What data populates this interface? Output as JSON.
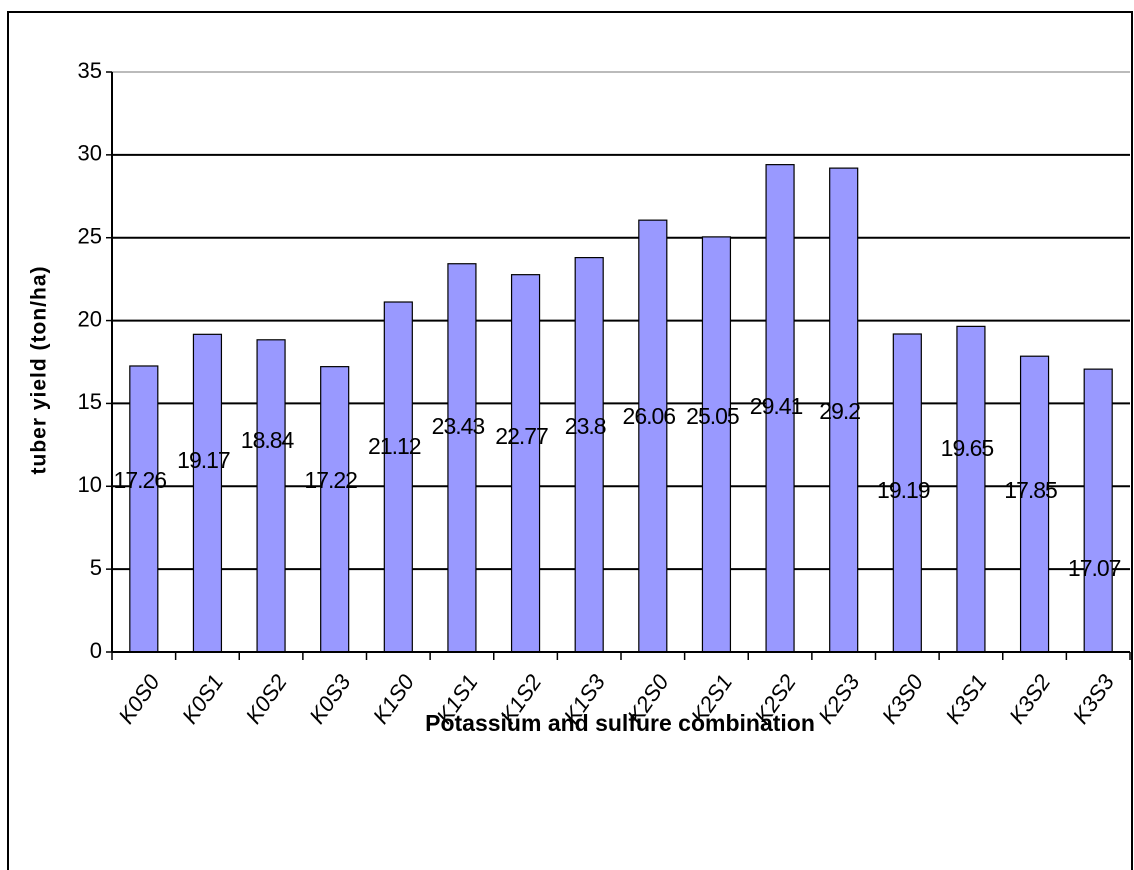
{
  "chart_data": {
    "type": "bar",
    "x_label": "Potassium and sulfure combination",
    "y_label": "tuber yield (ton/ha)",
    "categories": [
      "K0S0",
      "K0S1",
      "K0S2",
      "K0S3",
      "K1S0",
      "K1S1",
      "K1S2",
      "K1S3",
      "K2S0",
      "K2S1",
      "K2S2",
      "K2S3",
      "K3S0",
      "K3S1",
      "K3S2",
      "K3S3"
    ],
    "values": [
      17.26,
      19.17,
      18.84,
      17.22,
      21.12,
      23.43,
      22.77,
      23.8,
      26.06,
      25.05,
      29.41,
      29.2,
      19.19,
      19.65,
      17.85,
      17.07
    ],
    "color": "#9999ff",
    "ylim": [
      0,
      35
    ],
    "yticks": [
      0,
      5,
      10,
      15,
      20,
      25,
      30,
      35
    ],
    "grid": true
  }
}
